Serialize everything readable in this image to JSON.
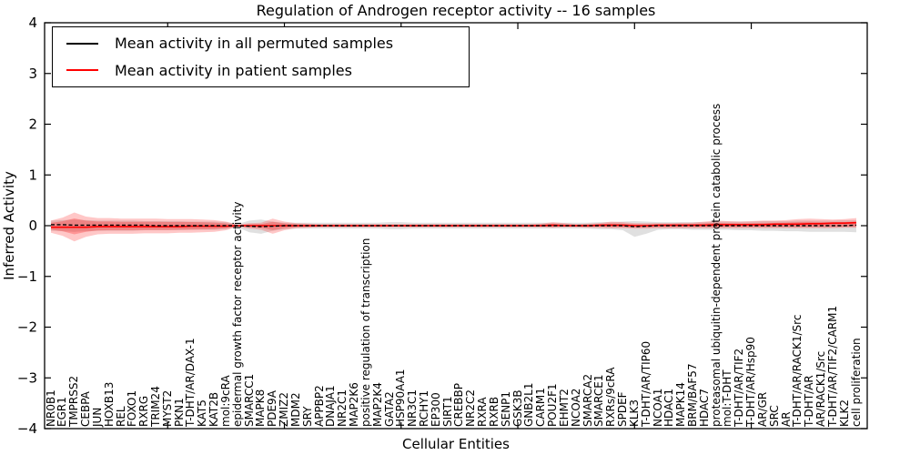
{
  "figure": {
    "title": "Regulation of Androgen receptor activity -- 16 samples",
    "xlabel": "Cellular Entities",
    "ylabel": "Inferred Activity"
  },
  "legend": {
    "items": [
      {
        "label": "Mean activity in all permuted samples",
        "color": "#000000"
      },
      {
        "label": "Mean activity in patient samples",
        "color": "#ff0000"
      }
    ]
  },
  "colors": {
    "permuted_line": "#000000",
    "patient_line": "#ff0000",
    "permuted_band": "#bbbbbb",
    "patient_band": "#ff0000",
    "axis": "#000000"
  },
  "chart_data": {
    "type": "line",
    "title": "Regulation of Androgen receptor activity -- 16 samples",
    "xlabel": "Cellular Entities",
    "ylabel": "Inferred Activity",
    "ylim": [
      -4,
      4
    ],
    "grid": false,
    "legend_position": "upper left",
    "yticks": [
      {
        "v": 4,
        "label": "4"
      },
      {
        "v": 3,
        "label": "3"
      },
      {
        "v": 2,
        "label": "2"
      },
      {
        "v": 1,
        "label": "1"
      },
      {
        "v": 0,
        "label": "0"
      },
      {
        "v": -1,
        "label": "−1"
      },
      {
        "v": -2,
        "label": "−2"
      },
      {
        "v": -3,
        "label": "−3"
      },
      {
        "v": -4,
        "label": "−4"
      }
    ],
    "xtick_positions": [
      10,
      20,
      30,
      40,
      50,
      60
    ],
    "categories": [
      "NR0B1",
      "EGR1",
      "TMPRSS2",
      "CEBPA",
      "JUN",
      "HOXB13",
      "REL",
      "FOXO1",
      "RXRG",
      "TRIM24",
      "MYST2",
      "PKN1",
      "T-DHT/AR/DAX-1",
      "KAT5",
      "KAT2B",
      "mol:9cRA",
      "epidermal growth factor receptor activity",
      "SMARCC1",
      "MAPK8",
      "PDE9A",
      "ZMIZ2",
      "MDM2",
      "SRY",
      "APPBP2",
      "DNAJA1",
      "NR2C1",
      "MAP2K6",
      "positive regulation of transcription",
      "MAP2K4",
      "GATA2",
      "HSP90AA1",
      "NR3C1",
      "RCHY1",
      "EP300",
      "SIRT1",
      "CREBBP",
      "NR2C2",
      "RXRA",
      "RXRB",
      "SENP1",
      "GSK3B",
      "GNB2L1",
      "CARM1",
      "POU2F1",
      "EHMT2",
      "NCOA2",
      "SMARCA2",
      "SMARCE1",
      "RXRs/9cRA",
      "SPDEF",
      "KLK3",
      "T-DHT/AR/TIP60",
      "NCOA1",
      "HDAC1",
      "MAPK14",
      "BRM/BAF57",
      "HDAC7",
      "proteasomal ubiquitin-dependent protein catabolic process",
      "mol:T-DHT",
      "T-DHT/AR/TIF2",
      "T-DHT/AR/Hsp90",
      "AR/GR",
      "SRC",
      "AR",
      "T-DHT/AR/RACK1/Src",
      "T-DHT/AR",
      "AR/RACK1/Src",
      "T-DHT/AR/TIF2/CARM1",
      "KLK2",
      "cell proliferation"
    ],
    "series": [
      {
        "name": "Mean activity in all permuted samples",
        "color": "#000000",
        "style": "dashed",
        "values": [
          0.02,
          0.02,
          0.01,
          0.01,
          0.01,
          0.01,
          0.01,
          0.01,
          0.01,
          0.0,
          0.0,
          0.0,
          0.0,
          0.0,
          0.0,
          0.0,
          0.0,
          -0.01,
          -0.02,
          -0.01,
          0.0,
          0.0,
          0.0,
          0.0,
          0.0,
          0.0,
          0.0,
          0.0,
          0.0,
          0.0,
          0.0,
          0.0,
          0.0,
          0.0,
          0.0,
          0.0,
          0.0,
          0.0,
          0.0,
          0.0,
          0.0,
          0.0,
          0.0,
          0.0,
          0.0,
          0.0,
          0.0,
          0.0,
          0.0,
          0.0,
          -0.02,
          -0.01,
          0.0,
          0.0,
          0.0,
          0.0,
          0.0,
          0.0,
          0.0,
          0.0,
          0.0,
          0.0,
          0.0,
          0.0,
          0.0,
          0.0,
          0.0,
          0.0,
          0.0,
          0.01
        ]
      },
      {
        "name": "Mean activity in patient samples",
        "color": "#ff0000",
        "style": "solid",
        "values": [
          -0.03,
          -0.03,
          -0.03,
          -0.03,
          -0.02,
          -0.02,
          -0.02,
          -0.02,
          -0.02,
          -0.02,
          -0.02,
          -0.02,
          -0.01,
          -0.01,
          -0.01,
          -0.01,
          0.0,
          0.0,
          0.0,
          0.0,
          0.0,
          0.0,
          0.0,
          0.0,
          0.0,
          0.0,
          0.0,
          0.0,
          0.0,
          0.0,
          0.0,
          0.0,
          0.0,
          0.0,
          0.0,
          0.0,
          0.0,
          0.0,
          0.0,
          0.0,
          0.0,
          0.0,
          0.0,
          0.01,
          0.0,
          0.0,
          0.0,
          0.01,
          0.01,
          0.01,
          0.0,
          0.0,
          0.01,
          0.01,
          0.01,
          0.01,
          0.01,
          0.02,
          0.02,
          0.02,
          0.02,
          0.02,
          0.03,
          0.03,
          0.03,
          0.04,
          0.04,
          0.05,
          0.05,
          0.06
        ]
      }
    ],
    "bands": [
      {
        "name": "permuted-samples-band",
        "color": "#bbbbbb",
        "opacity": 0.45,
        "upper": [
          0.1,
          0.11,
          0.12,
          0.11,
          0.1,
          0.1,
          0.1,
          0.1,
          0.09,
          0.09,
          0.09,
          0.09,
          0.08,
          0.08,
          0.08,
          0.07,
          0.03,
          0.1,
          0.12,
          0.08,
          0.06,
          0.06,
          0.06,
          0.06,
          0.06,
          0.06,
          0.06,
          0.06,
          0.06,
          0.07,
          0.07,
          0.06,
          0.06,
          0.06,
          0.06,
          0.06,
          0.06,
          0.06,
          0.06,
          0.06,
          0.06,
          0.06,
          0.06,
          0.06,
          0.06,
          0.06,
          0.06,
          0.07,
          0.07,
          0.08,
          0.09,
          0.08,
          0.07,
          0.07,
          0.07,
          0.07,
          0.07,
          0.08,
          0.08,
          0.08,
          0.08,
          0.09,
          0.09,
          0.09,
          0.1,
          0.1,
          0.1,
          0.1,
          0.11,
          0.11
        ],
        "lower": [
          -0.1,
          -0.11,
          -0.12,
          -0.11,
          -0.1,
          -0.1,
          -0.1,
          -0.1,
          -0.09,
          -0.09,
          -0.09,
          -0.09,
          -0.08,
          -0.08,
          -0.08,
          -0.07,
          -0.03,
          -0.13,
          -0.16,
          -0.1,
          -0.07,
          -0.06,
          -0.06,
          -0.06,
          -0.06,
          -0.06,
          -0.06,
          -0.06,
          -0.06,
          -0.07,
          -0.07,
          -0.06,
          -0.06,
          -0.06,
          -0.06,
          -0.06,
          -0.06,
          -0.06,
          -0.06,
          -0.06,
          -0.06,
          -0.06,
          -0.06,
          -0.06,
          -0.06,
          -0.06,
          -0.06,
          -0.07,
          -0.07,
          -0.09,
          -0.22,
          -0.16,
          -0.08,
          -0.07,
          -0.07,
          -0.08,
          -0.08,
          -0.08,
          -0.08,
          -0.09,
          -0.09,
          -0.1,
          -0.1,
          -0.11,
          -0.11,
          -0.12,
          -0.12,
          -0.12,
          -0.12,
          -0.13
        ]
      },
      {
        "name": "patient-samples-band",
        "color": "#ff0000",
        "opacity": 0.22,
        "inner_scale": 0.55,
        "inner_opacity": 0.25,
        "upper": [
          0.1,
          0.16,
          0.26,
          0.18,
          0.15,
          0.15,
          0.14,
          0.14,
          0.14,
          0.14,
          0.13,
          0.13,
          0.13,
          0.12,
          0.11,
          0.08,
          0.02,
          0.05,
          0.06,
          0.14,
          0.08,
          0.05,
          0.04,
          0.03,
          0.03,
          0.03,
          0.03,
          0.03,
          0.03,
          0.03,
          0.03,
          0.03,
          0.03,
          0.03,
          0.03,
          0.03,
          0.03,
          0.03,
          0.03,
          0.03,
          0.03,
          0.03,
          0.04,
          0.07,
          0.05,
          0.03,
          0.04,
          0.05,
          0.08,
          0.07,
          0.05,
          0.05,
          0.05,
          0.05,
          0.06,
          0.06,
          0.08,
          0.1,
          0.09,
          0.08,
          0.09,
          0.1,
          0.1,
          0.11,
          0.13,
          0.14,
          0.13,
          0.12,
          0.13,
          0.15
        ],
        "lower": [
          -0.14,
          -0.2,
          -0.31,
          -0.22,
          -0.17,
          -0.16,
          -0.16,
          -0.16,
          -0.15,
          -0.15,
          -0.15,
          -0.14,
          -0.14,
          -0.13,
          -0.12,
          -0.09,
          -0.02,
          -0.06,
          -0.08,
          -0.16,
          -0.09,
          -0.05,
          -0.04,
          -0.03,
          -0.03,
          -0.03,
          -0.03,
          -0.03,
          -0.03,
          -0.03,
          -0.03,
          -0.03,
          -0.03,
          -0.03,
          -0.03,
          -0.03,
          -0.03,
          -0.03,
          -0.03,
          -0.03,
          -0.03,
          -0.03,
          -0.03,
          -0.04,
          -0.03,
          -0.03,
          -0.04,
          -0.04,
          -0.05,
          -0.05,
          -0.06,
          -0.06,
          -0.05,
          -0.05,
          -0.05,
          -0.05,
          -0.05,
          -0.05,
          -0.05,
          -0.05,
          -0.05,
          -0.05,
          -0.05,
          -0.05,
          -0.05,
          -0.05,
          -0.05,
          -0.05,
          -0.04,
          -0.04
        ]
      }
    ]
  }
}
